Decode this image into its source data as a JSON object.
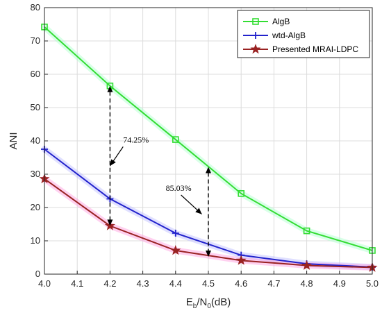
{
  "chart_data": {
    "type": "line",
    "title": "",
    "xlabel": "E",
    "xlabel_sub1": "b",
    "xlabel_mid": "/N",
    "xlabel_sub2": "0",
    "xlabel_suffix": "(dB)",
    "ylabel": "ANI",
    "xlim": [
      4.0,
      5.0
    ],
    "ylim": [
      0,
      80
    ],
    "x_ticks": [
      "4.0",
      "4.1",
      "4.2",
      "4.3",
      "4.4",
      "4.5",
      "4.6",
      "4.7",
      "4.8",
      "4.9",
      "5.0"
    ],
    "y_ticks": [
      "0",
      "10",
      "20",
      "30",
      "40",
      "50",
      "60",
      "70",
      "80"
    ],
    "grid": true,
    "legend_position": "top-right",
    "x": [
      4.0,
      4.2,
      4.4,
      4.6,
      4.8,
      5.0
    ],
    "series": [
      {
        "name": "AlgB",
        "values": [
          74.2,
          56.5,
          40.4,
          24.2,
          13.0,
          7.1
        ],
        "color": "#33dd33",
        "marker": "square"
      },
      {
        "name": "wtd-AlgB",
        "values": [
          37.5,
          22.6,
          12.3,
          5.7,
          3.1,
          2.1
        ],
        "color": "#2222cc",
        "marker": "plus"
      },
      {
        "name": "Presented MRAI-LDPC",
        "values": [
          28.6,
          14.5,
          7.1,
          4.1,
          2.6,
          2.0
        ],
        "color": "#992222",
        "marker": "star"
      }
    ],
    "annotations": [
      {
        "text": "74.25%",
        "x": 4.2,
        "y_top": 56.5,
        "y_bottom": 14.5,
        "text_x": 4.24,
        "text_y": 39.5,
        "arrow_to_x": 4.2,
        "arrow_to_y": 32.5
      },
      {
        "text": "85.03%",
        "x": 4.5,
        "y_top": 32.2,
        "y_bottom": 5.2,
        "text_x": 4.37,
        "text_y": 25.0,
        "arrow_to_x": 4.48,
        "arrow_to_y": 18.0
      }
    ]
  }
}
